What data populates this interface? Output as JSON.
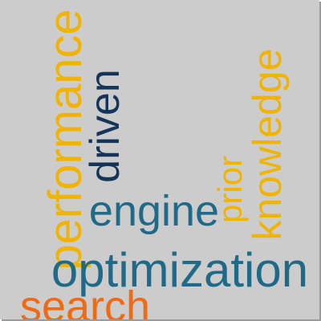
{
  "cloud": {
    "words": {
      "performance": "performance",
      "driven": "driven",
      "knowledge": "knowledge",
      "prior": "prior",
      "engine": "engine",
      "optimization": "optimization",
      "search": "search"
    }
  },
  "colors": {
    "background": "#cccccc",
    "yellow": "#f0b400",
    "teal": "#1f6a88",
    "navy": "#15345a",
    "orange": "#f06a14"
  }
}
